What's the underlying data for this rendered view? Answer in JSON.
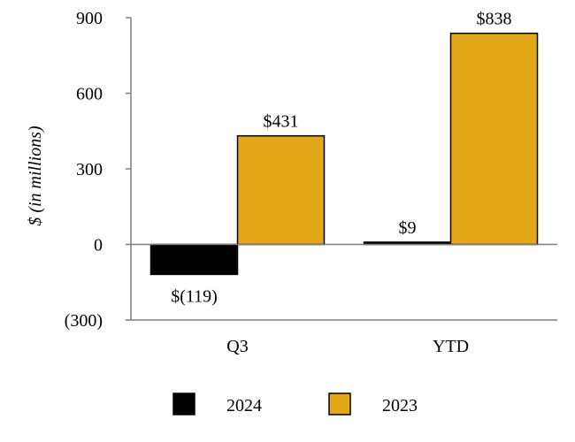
{
  "chart_data": {
    "type": "bar",
    "categories": [
      "Q3",
      "YTD"
    ],
    "series": [
      {
        "name": "2024",
        "color": "#000000",
        "values": [
          -119,
          9
        ],
        "labels": [
          "$(119)",
          "$9"
        ]
      },
      {
        "name": "2023",
        "color": "#E3A817",
        "values": [
          431,
          838
        ],
        "labels": [
          "$431",
          "$838"
        ]
      }
    ],
    "ylabel": "$ (in millions)",
    "ylim": [
      -300,
      900
    ],
    "yticks": [
      {
        "value": 900,
        "label": "900"
      },
      {
        "value": 600,
        "label": "600"
      },
      {
        "value": 300,
        "label": "300"
      },
      {
        "value": 0,
        "label": "0"
      },
      {
        "value": -300,
        "label": "(300)"
      }
    ],
    "legend_position": "bottom-center",
    "grid": false
  }
}
